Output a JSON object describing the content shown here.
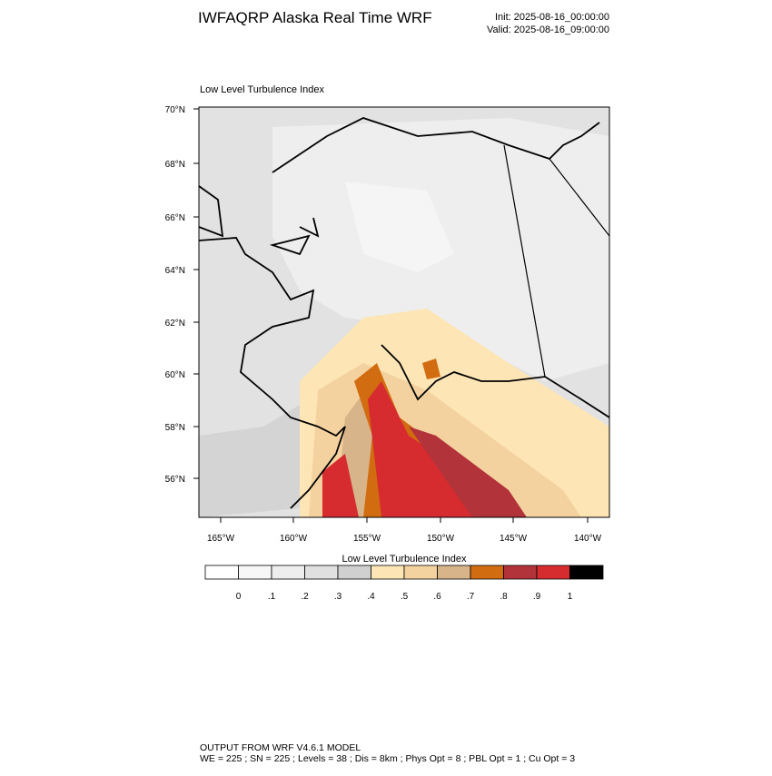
{
  "header": {
    "title": "IWFAQRP Alaska Real Time WRF",
    "init": "Init: 2025-08-16_00:00:00",
    "valid": "Valid: 2025-08-16_09:00:00"
  },
  "map": {
    "title": "Low Level Turbulence Index",
    "lat_labels": [
      "70°N",
      "68°N",
      "66°N",
      "64°N",
      "62°N",
      "60°N",
      "58°N",
      "56°N"
    ],
    "lon_labels": [
      "165°W",
      "160°W",
      "155°W",
      "150°W",
      "145°W",
      "140°W"
    ]
  },
  "colorbar": {
    "title": "Low Level Turbulence Index",
    "colors": [
      "#ffffff",
      "#f7f7f7",
      "#eeeeee",
      "#e0e0e0",
      "#d0d0d0",
      "#fde5b5",
      "#f4d29f",
      "#d7b48a",
      "#d26c10",
      "#b3333a",
      "#d62b2f",
      "#000000"
    ],
    "labels": [
      "0",
      ".1",
      ".2",
      ".3",
      ".4",
      ".5",
      ".6",
      ".7",
      ".8",
      ".9",
      "1"
    ]
  },
  "footer": {
    "line1": "OUTPUT FROM WRF V4.6.1 MODEL",
    "line2": "WE = 225 ; SN = 225 ; Levels = 38 ; Dis = 8km ; Phys Opt = 8 ; PBL Opt = 1 ; Cu Opt = 3"
  }
}
